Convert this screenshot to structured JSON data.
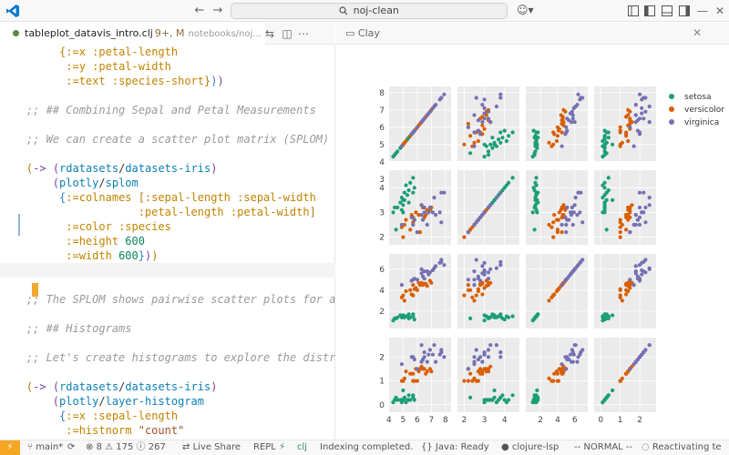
{
  "window": {
    "command_center": "noj-clean"
  },
  "editor": {
    "tab": {
      "name": "tableplot_datavis_intro.clj",
      "modified": "9+, M",
      "path": "notebooks/noj..."
    }
  },
  "panel": {
    "tab_label": "Clay"
  },
  "chart_data": {
    "type": "scatter",
    "kind": "scatter-plot-matrix",
    "legend": {
      "position": "top-right",
      "entries": [
        "setosa",
        "versicolor",
        "virginica"
      ]
    },
    "colors": {
      "setosa": "#1b9e77",
      "versicolor": "#d95f02",
      "virginica": "#7570b3"
    },
    "background": "#ebebeb",
    "axes": [
      {
        "variable": "sepal-length",
        "range": [
          4.2,
          8.2
        ],
        "ticks": [
          4,
          5,
          6,
          7,
          8
        ]
      },
      {
        "variable": "sepal-width",
        "range": [
          1.8,
          4.6
        ],
        "ticks": [
          2,
          3,
          4
        ]
      },
      {
        "variable": "petal-length",
        "range": [
          0.6,
          7.2
        ],
        "ticks": [
          2,
          4,
          6
        ]
      },
      {
        "variable": "petal-width",
        "range": [
          -0.2,
          2.7
        ],
        "ticks": [
          0,
          1,
          2
        ]
      }
    ],
    "y_ticks_shown": [
      {
        "row": 0,
        "ticks": [
          3,
          4,
          5,
          6,
          7,
          8
        ]
      },
      {
        "row": 1,
        "ticks": [
          2,
          3,
          4
        ]
      },
      {
        "row": 2,
        "ticks": [
          2,
          4,
          6
        ]
      },
      {
        "row": 3,
        "ticks": [
          0,
          1,
          2
        ]
      }
    ],
    "x_ticks_shown": [
      {
        "col": 0,
        "ticks": [
          4,
          5,
          6,
          7,
          8
        ]
      },
      {
        "col": 1,
        "ticks": [
          2,
          3,
          4
        ]
      },
      {
        "col": 2,
        "ticks": [
          2,
          4,
          6
        ]
      },
      {
        "col": 3,
        "ticks": [
          0,
          1,
          2
        ]
      }
    ],
    "series": [
      {
        "name": "setosa",
        "points": [
          [
            4.9,
            3.1,
            1.5,
            0.2
          ],
          [
            4.8,
            3.4,
            1.6,
            0.2
          ],
          [
            4.3,
            3.0,
            1.1,
            0.1
          ],
          [
            5.8,
            4.0,
            1.2,
            0.2
          ],
          [
            5.7,
            4.4,
            1.5,
            0.4
          ],
          [
            5.4,
            3.9,
            1.3,
            0.4
          ],
          [
            5.1,
            3.5,
            1.4,
            0.3
          ],
          [
            5.7,
            3.8,
            1.7,
            0.3
          ],
          [
            5.1,
            3.8,
            1.5,
            0.3
          ],
          [
            5.4,
            3.4,
            1.7,
            0.2
          ],
          [
            5.0,
            3.0,
            1.6,
            0.2
          ],
          [
            5.2,
            4.1,
            1.5,
            0.1
          ],
          [
            5.5,
            4.2,
            1.4,
            0.2
          ],
          [
            4.5,
            2.3,
            1.3,
            0.3
          ],
          [
            4.4,
            3.2,
            1.3,
            0.2
          ],
          [
            5.0,
            3.5,
            1.6,
            0.6
          ],
          [
            4.6,
            3.2,
            1.4,
            0.2
          ],
          [
            5.3,
            3.7,
            1.5,
            0.2
          ],
          [
            4.9,
            3.6,
            1.4,
            0.1
          ],
          [
            5.0,
            3.3,
            1.4,
            0.2
          ]
        ]
      },
      {
        "name": "versicolor",
        "points": [
          [
            7.0,
            3.2,
            4.7,
            1.4
          ],
          [
            6.4,
            3.2,
            4.5,
            1.5
          ],
          [
            6.9,
            3.1,
            4.9,
            1.5
          ],
          [
            5.5,
            2.3,
            4.0,
            1.3
          ],
          [
            6.5,
            2.8,
            4.6,
            1.5
          ],
          [
            5.7,
            2.8,
            4.5,
            1.3
          ],
          [
            6.3,
            3.3,
            4.7,
            1.6
          ],
          [
            4.9,
            2.4,
            3.3,
            1.0
          ],
          [
            6.6,
            2.9,
            4.6,
            1.3
          ],
          [
            5.2,
            2.7,
            3.9,
            1.4
          ],
          [
            5.0,
            2.0,
            3.5,
            1.0
          ],
          [
            5.9,
            3.0,
            4.2,
            1.5
          ],
          [
            6.0,
            2.2,
            4.0,
            1.0
          ],
          [
            6.1,
            2.9,
            4.7,
            1.4
          ],
          [
            5.6,
            2.9,
            3.6,
            1.3
          ],
          [
            6.7,
            3.1,
            4.4,
            1.4
          ],
          [
            5.8,
            2.7,
            4.1,
            1.0
          ],
          [
            6.2,
            2.2,
            4.5,
            1.5
          ],
          [
            5.1,
            2.5,
            3.0,
            1.1
          ],
          [
            5.7,
            2.6,
            3.5,
            1.0
          ]
        ]
      },
      {
        "name": "virginica",
        "points": [
          [
            6.3,
            3.3,
            6.0,
            2.5
          ],
          [
            5.8,
            2.7,
            5.1,
            1.9
          ],
          [
            7.1,
            3.0,
            5.9,
            2.1
          ],
          [
            6.3,
            2.9,
            5.6,
            1.8
          ],
          [
            6.5,
            3.0,
            5.8,
            2.2
          ],
          [
            7.6,
            3.0,
            6.6,
            2.1
          ],
          [
            4.9,
            2.5,
            4.5,
            1.7
          ],
          [
            7.3,
            2.9,
            6.3,
            1.8
          ],
          [
            6.7,
            2.5,
            5.8,
            1.8
          ],
          [
            7.2,
            3.6,
            6.1,
            2.5
          ],
          [
            6.5,
            3.2,
            5.1,
            2.0
          ],
          [
            6.4,
            2.7,
            5.3,
            1.9
          ],
          [
            6.8,
            3.0,
            5.5,
            2.1
          ],
          [
            5.7,
            2.5,
            5.0,
            2.0
          ],
          [
            7.7,
            3.8,
            6.7,
            2.2
          ],
          [
            7.7,
            2.6,
            6.9,
            2.3
          ],
          [
            6.0,
            2.2,
            5.0,
            1.5
          ],
          [
            6.9,
            3.2,
            5.7,
            2.3
          ],
          [
            5.6,
            2.8,
            4.9,
            2.0
          ],
          [
            7.9,
            3.8,
            6.4,
            2.0
          ]
        ]
      }
    ]
  },
  "statusbar": {
    "branch": "main*",
    "errors": "8",
    "warnings": "175",
    "infos": "267",
    "live_share": "Live Share",
    "repl": "REPL",
    "lang": "clj",
    "indexing": "Indexing completed.",
    "java": "Java: Ready",
    "lsp": "clojure-lsp",
    "mode": "-- NORMAL --",
    "reactivating": "Reactivating te"
  }
}
